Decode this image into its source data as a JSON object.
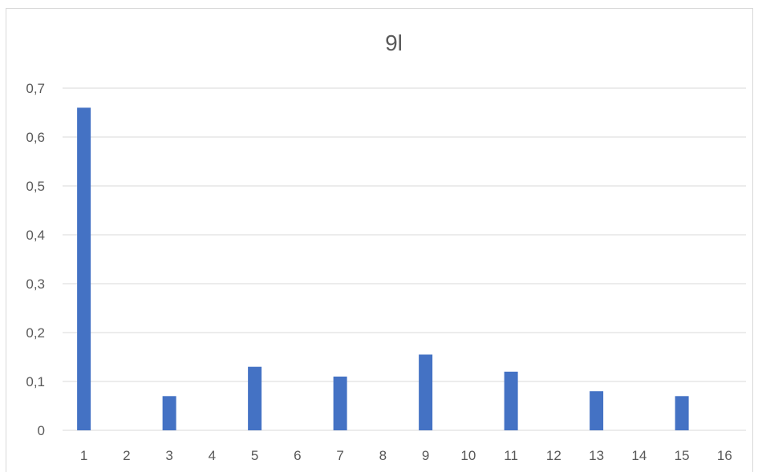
{
  "chart_data": {
    "type": "bar",
    "title": "9l",
    "xlabel": "",
    "ylabel": "",
    "categories": [
      "1",
      "2",
      "3",
      "4",
      "5",
      "6",
      "7",
      "8",
      "9",
      "10",
      "11",
      "12",
      "13",
      "14",
      "15",
      "16"
    ],
    "values": [
      0.66,
      0,
      0.07,
      0,
      0.13,
      0,
      0.11,
      0,
      0.155,
      0,
      0.12,
      0,
      0.08,
      0,
      0.07,
      0
    ],
    "ylim": [
      0,
      0.7
    ],
    "y_ticks": [
      "0",
      "0,1",
      "0,2",
      "0,3",
      "0,4",
      "0,5",
      "0,6",
      "0,7"
    ],
    "grid": true,
    "legend": "none",
    "bar_color": "#4472c4"
  }
}
